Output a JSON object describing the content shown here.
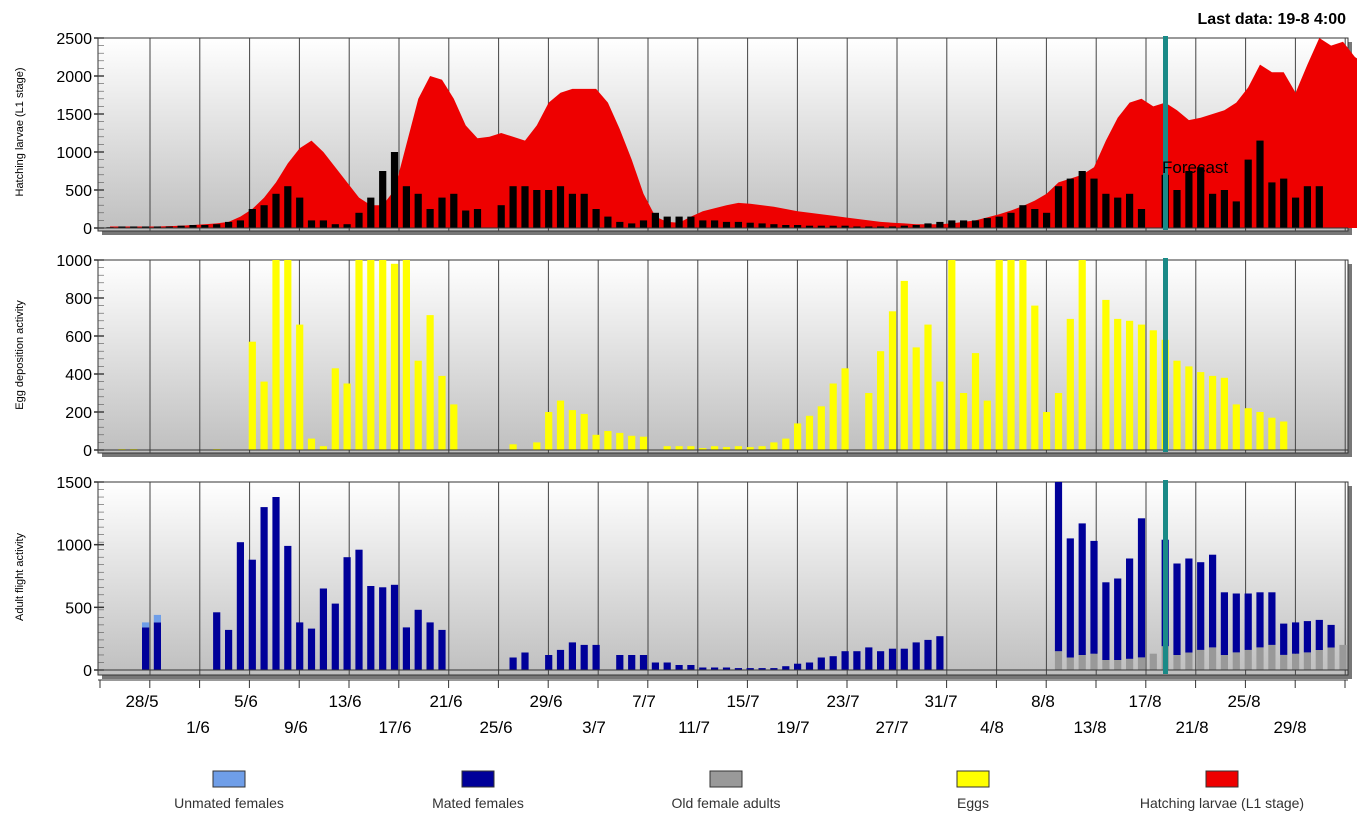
{
  "header": {
    "last_data": "Last data: 19-8 4:00"
  },
  "forecast_label": "Forecast",
  "colors": {
    "larvae": "#ee0000",
    "eggs": "#ffff00",
    "mated": "#000099",
    "unmated": "#6f9ee8",
    "old": "#999999",
    "black_bar": "#000000",
    "forecast_line": "#1a8a87",
    "panel_top": "#ffffff",
    "panel_bottom": "#bfbfbf"
  },
  "x_axis": {
    "top_row": [
      "28/5",
      "5/6",
      "13/6",
      "21/6",
      "29/6",
      "7/7",
      "15/7",
      "23/7",
      "31/7",
      "8/8",
      "17/8",
      "25/8"
    ],
    "bottom_row": [
      "1/6",
      "9/6",
      "17/6",
      "25/6",
      "3/7",
      "11/7",
      "19/7",
      "27/7",
      "4/8",
      "13/8",
      "21/8",
      "29/8"
    ]
  },
  "legend": [
    {
      "label": "Unmated females",
      "color": "#6f9ee8"
    },
    {
      "label": "Mated females",
      "color": "#000099"
    },
    {
      "label": "Old female adults",
      "color": "#999999"
    },
    {
      "label": "Eggs",
      "color": "#ffff00"
    },
    {
      "label": "Hatching larvae (L1 stage)",
      "color": "#ee0000"
    }
  ],
  "chart_data": [
    {
      "type": "area",
      "ylabel": "Hatching larvae (L1 stage)",
      "ylim": [
        0,
        2500
      ],
      "yticks": [
        "2500",
        "2000",
        "1500",
        "1000",
        "500",
        "0"
      ],
      "series": [
        {
          "name": "Hatching larvae (L1 stage)",
          "values": [
            20,
            20,
            20,
            20,
            20,
            25,
            30,
            40,
            50,
            60,
            80,
            150,
            250,
            400,
            600,
            850,
            1050,
            1150,
            1000,
            800,
            600,
            400,
            300,
            300,
            500,
            1100,
            1700,
            2000,
            1950,
            1700,
            1350,
            1180,
            1200,
            1250,
            1200,
            1150,
            1350,
            1650,
            1780,
            1830,
            1830,
            1830,
            1650,
            1300,
            900,
            450,
            150,
            80,
            70,
            150,
            220,
            260,
            300,
            330,
            320,
            300,
            280,
            250,
            220,
            200,
            180,
            160,
            140,
            120,
            100,
            80,
            70,
            60,
            50,
            50,
            50,
            60,
            80,
            100,
            140,
            180,
            230,
            290,
            360,
            450,
            600,
            650,
            700,
            800,
            1150,
            1450,
            1650,
            1700,
            1600,
            1650,
            1550,
            1420,
            1450,
            1500,
            1550,
            1650,
            1850,
            2150,
            2050,
            2050,
            1780,
            2150,
            2500,
            2400,
            2450,
            2250,
            2150,
            2000,
            1950
          ]
        },
        {
          "name": "Hatching larvae (black bars)",
          "values": [
            10,
            20,
            20,
            20,
            20,
            20,
            30,
            40,
            40,
            50,
            80,
            100,
            250,
            300,
            450,
            550,
            400,
            100,
            100,
            50,
            50,
            200,
            400,
            750,
            1000,
            550,
            450,
            250,
            400,
            450,
            230,
            250,
            0,
            300,
            550,
            550,
            500,
            500,
            550,
            450,
            450,
            250,
            150,
            80,
            60,
            100,
            200,
            150,
            150,
            150,
            100,
            100,
            80,
            80,
            70,
            60,
            50,
            40,
            40,
            30,
            30,
            30,
            30,
            20,
            20,
            20,
            20,
            30,
            40,
            60,
            80,
            100,
            100,
            100,
            130,
            150,
            200,
            300,
            250,
            200,
            550,
            650,
            750,
            650,
            450,
            400,
            450,
            250,
            0,
            700,
            500,
            750,
            800,
            450,
            500,
            350,
            900,
            1150,
            600,
            650,
            400,
            550,
            550
          ]
        }
      ]
    },
    {
      "type": "bar",
      "ylabel": "Egg deposition activity",
      "ylim": [
        0,
        1000
      ],
      "yticks": [
        "1000",
        "800",
        "600",
        "400",
        "200",
        "0"
      ],
      "series": [
        {
          "name": "Eggs",
          "values": [
            0,
            5,
            5,
            0,
            0,
            0,
            0,
            0,
            0,
            5,
            0,
            0,
            570,
            360,
            1000,
            1000,
            660,
            60,
            20,
            430,
            350,
            1000,
            1000,
            1000,
            980,
            1000,
            470,
            710,
            390,
            240,
            0,
            0,
            0,
            0,
            30,
            0,
            40,
            200,
            260,
            210,
            190,
            80,
            100,
            90,
            75,
            70,
            0,
            20,
            20,
            20,
            10,
            20,
            15,
            20,
            15,
            20,
            40,
            60,
            140,
            180,
            230,
            350,
            430,
            0,
            300,
            520,
            730,
            890,
            540,
            660,
            360,
            1000,
            300,
            510,
            260,
            1000,
            1000,
            1000,
            760,
            200,
            300,
            690,
            1000,
            0,
            790,
            690,
            680,
            660,
            630,
            580,
            470,
            440,
            410,
            390,
            380,
            240,
            220,
            200,
            170,
            150
          ]
        }
      ]
    },
    {
      "type": "bar",
      "ylabel": "Adult flight activity",
      "ylim": [
        0,
        1500
      ],
      "yticks": [
        "1500",
        "1000",
        "500",
        "0"
      ],
      "series": [
        {
          "name": "Unmated females",
          "values": [
            0,
            0,
            0,
            40,
            60,
            0,
            0,
            0,
            0,
            0,
            0,
            0,
            0,
            0,
            0,
            0,
            0,
            0,
            0,
            0,
            0,
            0,
            0,
            0,
            0,
            0,
            0,
            0,
            0,
            0,
            0,
            0,
            0,
            0,
            0,
            0,
            0,
            0,
            0,
            0,
            0,
            0,
            0,
            0,
            0,
            0,
            0,
            0,
            0,
            0,
            0,
            0,
            0,
            0,
            0,
            0,
            0,
            0,
            0,
            0,
            0,
            0,
            0,
            0,
            0,
            0,
            0,
            0,
            0,
            0,
            0,
            0,
            0,
            0,
            0,
            0,
            0,
            0,
            0,
            0,
            0,
            0,
            0,
            0,
            0,
            0,
            0,
            0,
            0,
            0,
            0,
            0,
            0,
            0,
            0,
            0,
            0,
            0,
            0,
            0,
            0,
            0,
            0,
            0,
            0
          ]
        },
        {
          "name": "Mated females",
          "values": [
            0,
            0,
            0,
            340,
            380,
            0,
            0,
            0,
            0,
            460,
            320,
            1020,
            880,
            1300,
            1380,
            990,
            380,
            330,
            650,
            530,
            900,
            960,
            670,
            660,
            680,
            340,
            480,
            380,
            320,
            0,
            0,
            0,
            0,
            0,
            100,
            140,
            0,
            120,
            160,
            220,
            200,
            200,
            0,
            120,
            120,
            120,
            60,
            60,
            40,
            40,
            20,
            20,
            20,
            15,
            15,
            15,
            15,
            30,
            50,
            60,
            100,
            110,
            150,
            150,
            180,
            150,
            170,
            170,
            220,
            240,
            270,
            0,
            0,
            0,
            0,
            0,
            0,
            0,
            0,
            0,
            1350,
            950,
            1050,
            900,
            620,
            650,
            800,
            1110,
            0,
            850,
            730,
            750,
            700,
            740,
            500,
            470,
            450,
            440,
            420,
            250,
            250,
            250,
            240,
            180
          ]
        },
        {
          "name": "Old female adults",
          "values": [
            0,
            0,
            0,
            0,
            0,
            0,
            0,
            0,
            0,
            0,
            0,
            0,
            0,
            0,
            0,
            0,
            0,
            0,
            0,
            0,
            0,
            0,
            0,
            0,
            0,
            0,
            0,
            0,
            0,
            0,
            0,
            0,
            0,
            0,
            0,
            0,
            0,
            0,
            0,
            0,
            0,
            0,
            0,
            0,
            0,
            0,
            0,
            0,
            0,
            0,
            0,
            0,
            0,
            0,
            0,
            0,
            0,
            0,
            0,
            0,
            0,
            0,
            0,
            0,
            0,
            0,
            0,
            0,
            0,
            0,
            0,
            0,
            0,
            0,
            0,
            0,
            0,
            0,
            0,
            0,
            150,
            100,
            120,
            130,
            80,
            80,
            90,
            100,
            130,
            190,
            120,
            140,
            160,
            180,
            120,
            140,
            160,
            180,
            200,
            120,
            130,
            140,
            160,
            180,
            200
          ]
        }
      ]
    }
  ]
}
